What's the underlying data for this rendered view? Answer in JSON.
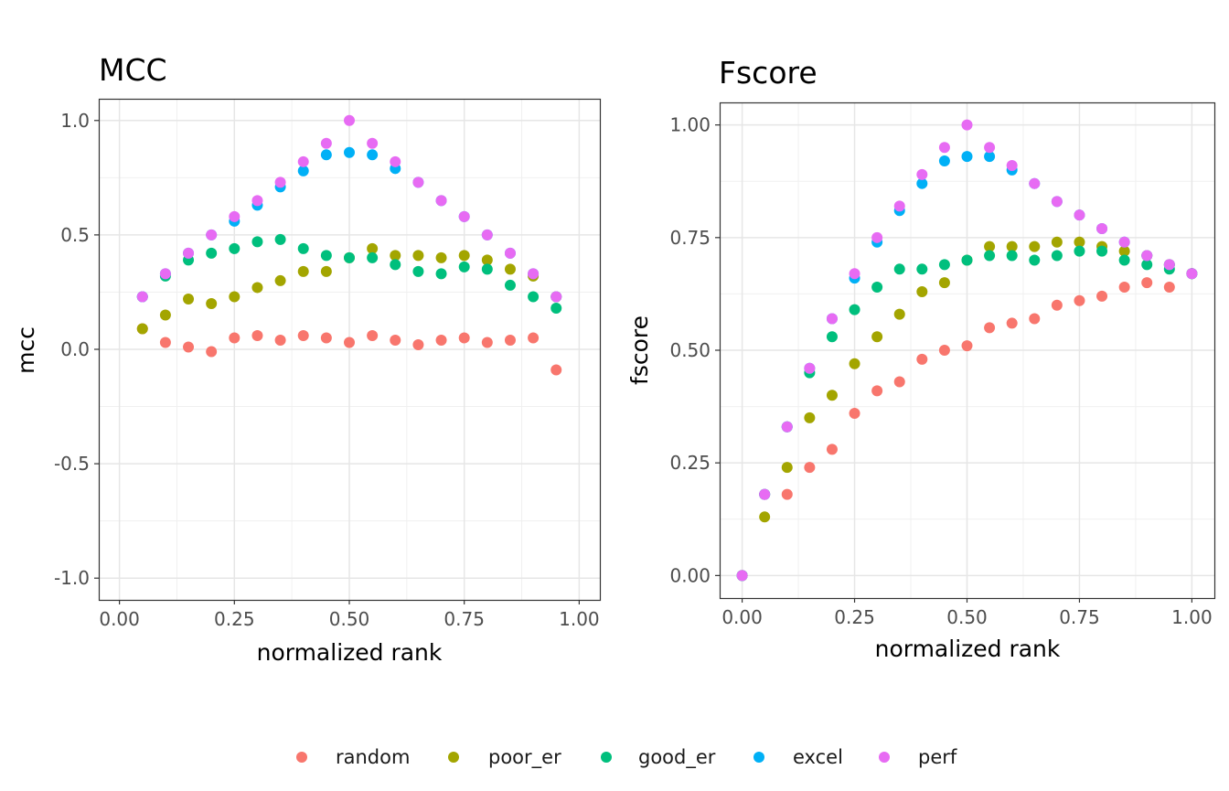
{
  "colors": {
    "random": "#F8766D",
    "poor_er": "#A3A500",
    "good_er": "#00BF7D",
    "excel": "#00B0F6",
    "perf": "#E76BF3"
  },
  "legend": {
    "position": "bottom",
    "entries": [
      "random",
      "poor_er",
      "good_er",
      "excel",
      "perf"
    ]
  },
  "chart_data": [
    {
      "type": "scatter",
      "title": "MCC",
      "xlabel": "normalized rank",
      "ylabel": "mcc",
      "xlim": [
        -0.045,
        1.045
      ],
      "ylim": [
        -1.095,
        1.095
      ],
      "x_ticks": [
        0,
        0.25,
        0.5,
        0.75,
        1
      ],
      "x_tick_labels": [
        "0.00",
        "0.25",
        "0.50",
        "0.75",
        "1.00"
      ],
      "y_ticks": [
        -1,
        -0.5,
        0,
        0.5,
        1
      ],
      "y_tick_labels": [
        "-1.0",
        "-0.5",
        "0.0",
        "0.5",
        "1.0"
      ],
      "grid": true,
      "x": [
        0.05,
        0.1,
        0.15,
        0.2,
        0.25,
        0.3,
        0.35,
        0.4,
        0.45,
        0.5,
        0.55,
        0.6,
        0.65,
        0.7,
        0.75,
        0.8,
        0.85,
        0.9,
        0.95
      ],
      "series": [
        {
          "name": "random",
          "values": [
            0.09,
            0.03,
            0.01,
            -0.01,
            0.05,
            0.06,
            0.04,
            0.06,
            0.05,
            0.03,
            0.06,
            0.04,
            0.02,
            0.04,
            0.05,
            0.03,
            0.04,
            0.05,
            -0.09
          ]
        },
        {
          "name": "poor_er",
          "values": [
            0.09,
            0.15,
            0.22,
            0.2,
            0.23,
            0.27,
            0.3,
            0.34,
            0.34,
            0.4,
            0.44,
            0.41,
            0.41,
            0.4,
            0.41,
            0.39,
            0.35,
            0.32,
            0.23
          ]
        },
        {
          "name": "good_er",
          "values": [
            0.23,
            0.32,
            0.39,
            0.42,
            0.44,
            0.47,
            0.48,
            0.44,
            0.41,
            0.4,
            0.4,
            0.37,
            0.34,
            0.33,
            0.36,
            0.35,
            0.28,
            0.23,
            0.18
          ]
        },
        {
          "name": "excel",
          "values": [
            0.23,
            0.33,
            0.42,
            0.5,
            0.56,
            0.63,
            0.71,
            0.78,
            0.85,
            0.86,
            0.85,
            0.79,
            0.73,
            0.65,
            0.58,
            0.5,
            0.42,
            0.33,
            0.23
          ]
        },
        {
          "name": "perf",
          "values": [
            0.23,
            0.33,
            0.42,
            0.5,
            0.58,
            0.65,
            0.73,
            0.82,
            0.9,
            1.0,
            0.9,
            0.82,
            0.73,
            0.65,
            0.58,
            0.5,
            0.42,
            0.33,
            0.23
          ]
        }
      ]
    },
    {
      "type": "scatter",
      "title": "Fscore",
      "xlabel": "normalized rank",
      "ylabel": "fscore",
      "xlim": [
        -0.05,
        1.05
      ],
      "ylim": [
        -0.05,
        1.05
      ],
      "x_ticks": [
        0,
        0.25,
        0.5,
        0.75,
        1
      ],
      "x_tick_labels": [
        "0.00",
        "0.25",
        "0.50",
        "0.75",
        "1.00"
      ],
      "y_ticks": [
        0,
        0.25,
        0.5,
        0.75,
        1
      ],
      "y_tick_labels": [
        "0.00",
        "0.25",
        "0.50",
        "0.75",
        "1.00"
      ],
      "grid": true,
      "x": [
        0,
        0.05,
        0.1,
        0.15,
        0.2,
        0.25,
        0.3,
        0.35,
        0.4,
        0.45,
        0.5,
        0.55,
        0.6,
        0.65,
        0.7,
        0.75,
        0.8,
        0.85,
        0.9,
        0.95,
        1.0
      ],
      "series": [
        {
          "name": "random",
          "values": [
            0.0,
            0.18,
            0.18,
            0.24,
            0.28,
            0.36,
            0.41,
            0.43,
            0.48,
            0.5,
            0.51,
            0.55,
            0.56,
            0.57,
            0.6,
            0.61,
            0.62,
            0.64,
            0.65,
            0.64,
            0.67
          ]
        },
        {
          "name": "poor_er",
          "values": [
            0.0,
            0.13,
            0.24,
            0.35,
            0.4,
            0.47,
            0.53,
            0.58,
            0.63,
            0.65,
            0.7,
            0.73,
            0.73,
            0.73,
            0.74,
            0.74,
            0.73,
            0.72,
            0.71,
            0.69,
            0.67
          ]
        },
        {
          "name": "good_er",
          "values": [
            0.0,
            0.18,
            0.33,
            0.45,
            0.53,
            0.59,
            0.64,
            0.68,
            0.68,
            0.69,
            0.7,
            0.71,
            0.71,
            0.7,
            0.71,
            0.72,
            0.72,
            0.7,
            0.69,
            0.68,
            0.67
          ]
        },
        {
          "name": "excel",
          "values": [
            0.0,
            0.18,
            0.33,
            0.46,
            0.57,
            0.66,
            0.74,
            0.81,
            0.87,
            0.92,
            0.93,
            0.93,
            0.9,
            0.87,
            0.83,
            0.8,
            0.77,
            0.74,
            0.71,
            0.69,
            0.67
          ]
        },
        {
          "name": "perf",
          "values": [
            0.0,
            0.18,
            0.33,
            0.46,
            0.57,
            0.67,
            0.75,
            0.82,
            0.89,
            0.95,
            1.0,
            0.95,
            0.91,
            0.87,
            0.83,
            0.8,
            0.77,
            0.74,
            0.71,
            0.69,
            0.67
          ]
        }
      ]
    }
  ]
}
